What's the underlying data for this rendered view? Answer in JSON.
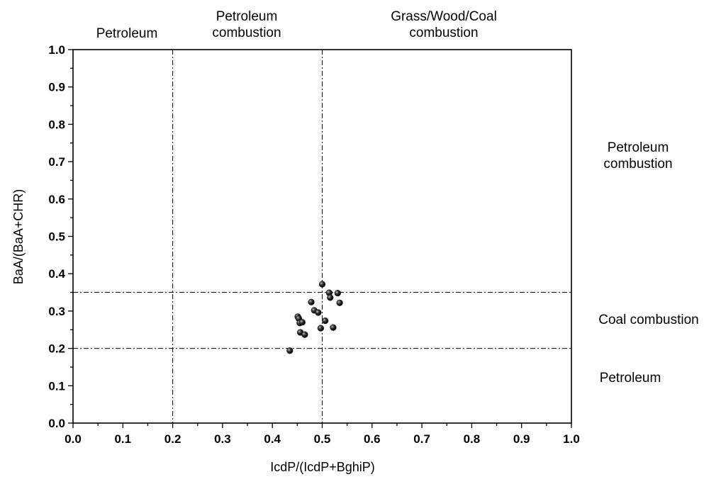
{
  "chart_data": {
    "type": "scatter",
    "xlabel": "IcdP/(IcdP+BghiP)",
    "ylabel": "BaA/(BaA+CHR)",
    "xlim": [
      0.0,
      1.0
    ],
    "ylim": [
      0.0,
      1.0
    ],
    "x_ticks": [
      "0.0",
      "0.1",
      "0.2",
      "0.3",
      "0.4",
      "0.5",
      "0.6",
      "0.7",
      "0.8",
      "0.9",
      "1.0"
    ],
    "y_ticks": [
      "0.0",
      "0.1",
      "0.2",
      "0.3",
      "0.4",
      "0.5",
      "0.6",
      "0.7",
      "0.8",
      "0.9",
      "1.0"
    ],
    "grid": false,
    "reference_lines": {
      "vertical_x": [
        0.2,
        0.5
      ],
      "horizontal_y": [
        0.2,
        0.35
      ]
    },
    "top_region_labels": [
      {
        "lines": [
          "Petroleum"
        ]
      },
      {
        "lines": [
          "Petroleum",
          "combustion"
        ]
      },
      {
        "lines": [
          "Grass/Wood/Coal",
          "combustion"
        ]
      }
    ],
    "right_region_labels": [
      {
        "lines": [
          "Petroleum",
          "combustion"
        ]
      },
      {
        "lines": [
          "Coal combustion"
        ]
      },
      {
        "lines": [
          "Petroleum"
        ]
      }
    ],
    "points": [
      {
        "x": 0.435,
        "y": 0.194
      },
      {
        "x": 0.451,
        "y": 0.285
      },
      {
        "x": 0.453,
        "y": 0.28
      },
      {
        "x": 0.455,
        "y": 0.268
      },
      {
        "x": 0.456,
        "y": 0.243
      },
      {
        "x": 0.46,
        "y": 0.27
      },
      {
        "x": 0.465,
        "y": 0.237
      },
      {
        "x": 0.478,
        "y": 0.324
      },
      {
        "x": 0.484,
        "y": 0.302
      },
      {
        "x": 0.492,
        "y": 0.296
      },
      {
        "x": 0.497,
        "y": 0.254
      },
      {
        "x": 0.5,
        "y": 0.372
      },
      {
        "x": 0.506,
        "y": 0.274
      },
      {
        "x": 0.514,
        "y": 0.349
      },
      {
        "x": 0.516,
        "y": 0.336
      },
      {
        "x": 0.522,
        "y": 0.256
      },
      {
        "x": 0.531,
        "y": 0.348
      },
      {
        "x": 0.535,
        "y": 0.322
      }
    ],
    "marker_color": "#111111"
  }
}
